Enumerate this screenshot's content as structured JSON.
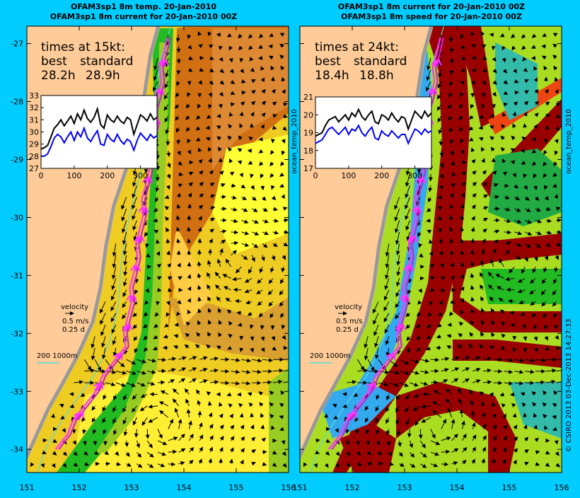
{
  "panels": [
    {
      "id": "temp",
      "title_line1": "OFAM3sp1 8m temp. 20-Jan-2010",
      "title_line2": "OFAM3sp1 8m current for 20-Jan-2010 00Z",
      "speed_label": "times at 15kt:",
      "col_best": "best",
      "col_standard": "standard",
      "best_value": "28.2h",
      "standard_value": "28.9h",
      "velocity_title": "velocity",
      "velocity_speed": "0.5 m/s",
      "velocity_time": "0.25 d",
      "isobath_label": "200  1000m"
    },
    {
      "id": "speed",
      "title_line1": "OFAM3sp1 8m current for 20-Jan-2010 00Z",
      "title_line2": "OFAM3sp1 8m speed for 20-Jan-2010 00Z",
      "speed_label": "times at 24kt:",
      "col_best": "best",
      "col_standard": "standard",
      "best_value": "18.4h",
      "standard_value": "18.8h",
      "velocity_title": "velocity",
      "velocity_speed": "0.5 m/s",
      "velocity_time": "0.25 d",
      "isobath_label": "200  1000m"
    }
  ],
  "side_labels": {
    "left": "ocean_temp_2010",
    "right": "ocean_temp_2010",
    "credit": "© CSIRO 2013   03-Dec-2013 14:27:33"
  },
  "chart_data": [
    {
      "type": "map",
      "x_axis": "longitude",
      "y_axis": "latitude",
      "xlim": [
        151,
        156
      ],
      "ylim": [
        -34.4,
        -26.7
      ],
      "x_ticks": [
        "151",
        "152",
        "153",
        "154",
        "155",
        "156"
      ],
      "y_ticks": [
        "-27",
        "-28",
        "-29",
        "-30",
        "-31",
        "-32",
        "-33",
        "-34"
      ],
      "route_start": [
        151.55,
        -34.0
      ],
      "route_end": [
        153.65,
        -26.9
      ]
    },
    {
      "type": "line",
      "panel": "temp",
      "xlim": [
        0,
        350
      ],
      "ylim": [
        27,
        33
      ],
      "x_ticks": [
        "0",
        "100",
        "200",
        "300"
      ],
      "y_ticks": [
        "27",
        "28",
        "29",
        "30",
        "31",
        "32",
        "33"
      ],
      "series": [
        {
          "color": "#000000",
          "values": [
            28.6,
            28.7,
            28.9,
            29.6,
            30.3,
            30.6,
            31.0,
            30.5,
            30.9,
            31.3,
            30.7,
            31.5,
            31.0,
            31.8,
            31.1,
            30.8,
            31.2,
            31.9,
            30.6,
            30.3,
            31.4,
            31.0,
            30.8,
            31.3,
            30.9,
            30.7,
            31.2,
            31.0,
            29.8,
            30.6,
            31.4,
            31.2,
            30.9,
            31.5,
            31.0,
            31.2
          ]
        },
        {
          "color": "#0000ff",
          "values": [
            28.0,
            28.0,
            28.2,
            28.8,
            29.5,
            29.8,
            29.6,
            29.1,
            29.6,
            30.0,
            29.3,
            30.0,
            29.6,
            30.3,
            29.5,
            29.2,
            29.7,
            30.1,
            29.0,
            28.9,
            29.8,
            29.4,
            29.2,
            29.8,
            29.3,
            29.0,
            29.4,
            29.2,
            28.5,
            29.3,
            29.9,
            29.6,
            29.3,
            29.8,
            29.5,
            29.7
          ]
        }
      ]
    },
    {
      "type": "line",
      "panel": "speed",
      "xlim": [
        0,
        350
      ],
      "ylim": [
        17,
        21
      ],
      "x_ticks": [
        "0",
        "100",
        "200",
        "300"
      ],
      "y_ticks": [
        "17",
        "18",
        "19",
        "20",
        "21"
      ],
      "series": [
        {
          "color": "#000000",
          "values": [
            18.8,
            18.9,
            19.0,
            19.4,
            19.7,
            19.8,
            19.9,
            19.6,
            19.8,
            20.0,
            19.7,
            20.1,
            19.9,
            20.3,
            19.9,
            19.7,
            20.0,
            20.2,
            19.6,
            19.5,
            20.0,
            19.9,
            19.7,
            20.1,
            19.8,
            19.6,
            19.9,
            19.8,
            19.2,
            19.7,
            20.2,
            20.0,
            19.8,
            20.2,
            19.9,
            20.1
          ]
        },
        {
          "color": "#0000ff",
          "values": [
            18.4,
            18.5,
            18.6,
            18.9,
            19.2,
            19.3,
            19.1,
            18.9,
            19.1,
            19.3,
            18.9,
            19.2,
            19.1,
            19.4,
            19.0,
            18.8,
            19.1,
            19.3,
            18.7,
            18.6,
            19.1,
            18.9,
            18.8,
            19.1,
            18.9,
            18.7,
            18.9,
            18.9,
            18.4,
            18.8,
            19.2,
            19.1,
            18.9,
            19.2,
            19.0,
            19.1
          ]
        }
      ]
    }
  ]
}
